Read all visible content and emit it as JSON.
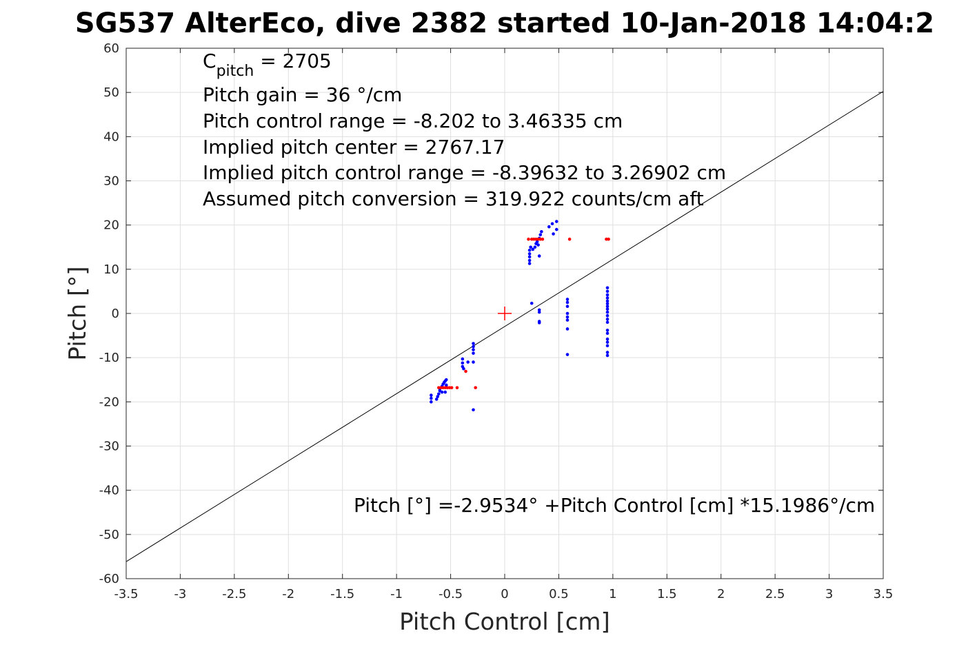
{
  "chart_data": {
    "type": "scatter",
    "title": "SG537 AlterEco, dive 2382 started 10-Jan-2018 14:04:2",
    "xlabel": "Pitch Control [cm]",
    "ylabel": "Pitch [°]",
    "xlim": [
      -3.5,
      3.5
    ],
    "ylim": [
      -60,
      60
    ],
    "xticks": [
      -3.5,
      -3,
      -2.5,
      -2,
      -1.5,
      -1,
      -0.5,
      0,
      0.5,
      1,
      1.5,
      2,
      2.5,
      3,
      3.5
    ],
    "yticks": [
      -60,
      -50,
      -40,
      -30,
      -20,
      -10,
      0,
      10,
      20,
      30,
      40,
      50,
      60
    ],
    "grid": true,
    "annotations": {
      "c_pitch_prefix": "C",
      "c_pitch_sub": "pitch",
      "c_pitch_value": " = 2705",
      "lines": [
        "Pitch gain = 36 °/cm",
        "Pitch control range = -8.202 to 3.46335 cm",
        "Implied pitch center = 2767.17",
        "Implied pitch control range = -8.39632 to 3.26902 cm",
        "Assumed pitch conversion = 319.922 counts/cm aft"
      ],
      "fit_label": "Pitch [°] =-2.9534° +Pitch Control [cm] *15.1986°/cm"
    },
    "fit": {
      "intercept": -2.9534,
      "slope": 15.1986,
      "color": "#000000"
    },
    "center_marker": {
      "x": 0,
      "y": 0,
      "color": "#ff0000"
    },
    "series": [
      {
        "name": "blue",
        "color": "#0000ff",
        "points": [
          [
            -0.68,
            -18.5
          ],
          [
            -0.68,
            -19.2
          ],
          [
            -0.68,
            -20
          ],
          [
            -0.63,
            -19.4
          ],
          [
            -0.62,
            -18.8
          ],
          [
            -0.61,
            -18.2
          ],
          [
            -0.6,
            -17.5
          ],
          [
            -0.6,
            -17
          ],
          [
            -0.58,
            -16.5
          ],
          [
            -0.57,
            -16
          ],
          [
            -0.56,
            -15.6
          ],
          [
            -0.55,
            -15.3
          ],
          [
            -0.54,
            -15
          ],
          [
            -0.54,
            -16.2
          ],
          [
            -0.55,
            -17.8
          ],
          [
            -0.58,
            -17.8
          ],
          [
            -0.39,
            -10.3
          ],
          [
            -0.39,
            -11.2
          ],
          [
            -0.39,
            -12
          ],
          [
            -0.38,
            -12.5
          ],
          [
            -0.34,
            -11
          ],
          [
            -0.29,
            -6.8
          ],
          [
            -0.29,
            -7.5
          ],
          [
            -0.29,
            -8.2
          ],
          [
            -0.29,
            -9
          ],
          [
            -0.29,
            -11
          ],
          [
            -0.29,
            -21.8
          ],
          [
            0.23,
            11.3
          ],
          [
            0.23,
            12
          ],
          [
            0.23,
            12.8
          ],
          [
            0.23,
            13.5
          ],
          [
            0.23,
            14.3
          ],
          [
            0.24,
            15
          ],
          [
            0.26,
            14.5
          ],
          [
            0.28,
            15
          ],
          [
            0.29,
            15.8
          ],
          [
            0.3,
            16.2
          ],
          [
            0.31,
            15.5
          ],
          [
            0.32,
            17
          ],
          [
            0.33,
            17.8
          ],
          [
            0.34,
            18.5
          ],
          [
            0.32,
            13
          ],
          [
            0.41,
            19.6
          ],
          [
            0.44,
            20.3
          ],
          [
            0.48,
            20.8
          ],
          [
            0.45,
            18
          ],
          [
            0.48,
            19
          ],
          [
            0.25,
            2.3
          ],
          [
            0.32,
            0.8
          ],
          [
            0.32,
            0.3
          ],
          [
            0.32,
            -1.8
          ],
          [
            0.32,
            -2.1
          ],
          [
            0.58,
            3.2
          ],
          [
            0.58,
            2.5
          ],
          [
            0.58,
            1.6
          ],
          [
            0.58,
            0
          ],
          [
            0.58,
            -0.8
          ],
          [
            0.58,
            -1.5
          ],
          [
            0.58,
            -3.5
          ],
          [
            0.58,
            -9.3
          ],
          [
            0.95,
            5.8
          ],
          [
            0.95,
            5
          ],
          [
            0.95,
            4.2
          ],
          [
            0.95,
            3.5
          ],
          [
            0.95,
            2.8
          ],
          [
            0.95,
            2.2
          ],
          [
            0.95,
            1.6
          ],
          [
            0.95,
            1
          ],
          [
            0.95,
            0.3
          ],
          [
            0.95,
            -0.5
          ],
          [
            0.95,
            -1.3
          ],
          [
            0.95,
            -2
          ],
          [
            0.95,
            -3.8
          ],
          [
            0.95,
            -4.5
          ],
          [
            0.95,
            -5.8
          ],
          [
            0.95,
            -6.5
          ],
          [
            0.95,
            -7.3
          ],
          [
            0.95,
            -8.8
          ],
          [
            0.95,
            -9.5
          ]
        ]
      },
      {
        "name": "red",
        "color": "#ff0000",
        "points": [
          [
            -0.61,
            -16.8
          ],
          [
            -0.59,
            -16.8
          ],
          [
            -0.57,
            -16.8
          ],
          [
            -0.55,
            -16.8
          ],
          [
            -0.53,
            -16.8
          ],
          [
            -0.51,
            -16.8
          ],
          [
            -0.49,
            -16.8
          ],
          [
            -0.44,
            -16.8
          ],
          [
            -0.36,
            -13.1
          ],
          [
            -0.27,
            -16.8
          ],
          [
            0.22,
            16.8
          ],
          [
            0.25,
            16.8
          ],
          [
            0.27,
            16.8
          ],
          [
            0.29,
            16.8
          ],
          [
            0.31,
            16.8
          ],
          [
            0.33,
            16.8
          ],
          [
            0.35,
            16.8
          ],
          [
            0.6,
            16.8
          ],
          [
            0.94,
            16.8
          ],
          [
            0.96,
            16.8
          ]
        ]
      }
    ]
  }
}
